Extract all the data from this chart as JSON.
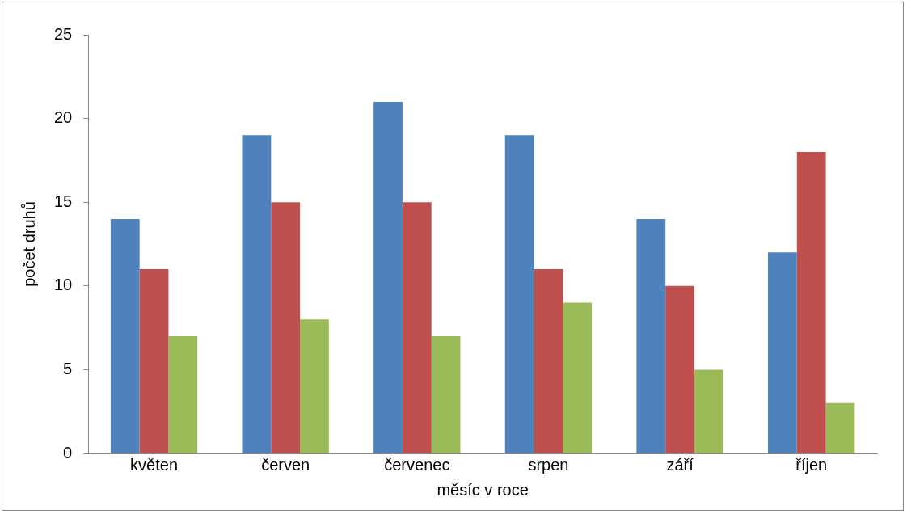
{
  "chart_data": {
    "type": "bar",
    "xlabel": "měsíc v roce",
    "ylabel": "počet druhů",
    "categories": [
      "květen",
      "červen",
      "červenec",
      "srpen",
      "září",
      "říjen"
    ],
    "series": [
      {
        "color": "#4f81bd",
        "values": [
          14,
          19,
          21,
          19,
          14,
          12
        ]
      },
      {
        "color": "#c0504d",
        "values": [
          11,
          15,
          15,
          11,
          10,
          18
        ]
      },
      {
        "color": "#9bbb59",
        "values": [
          7,
          8,
          7,
          9,
          5,
          3
        ]
      }
    ],
    "ylim": [
      0,
      25
    ],
    "yticks": [
      0,
      5,
      10,
      15,
      20,
      25
    ]
  }
}
